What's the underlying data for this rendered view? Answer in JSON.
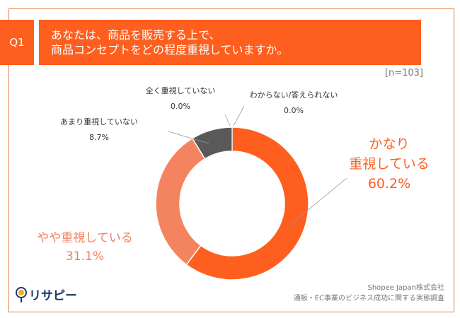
{
  "header": {
    "q_label": "Q1",
    "question_line1": "あなたは、商品を販売する上で、",
    "question_line2": "商品コンセプトをどの程度重視していますか。",
    "n": "[n=103]"
  },
  "chart_data": {
    "type": "pie",
    "donut": true,
    "categories": [
      "かなり重視している",
      "やや重視している",
      "あまり重視していない",
      "全く重視していない",
      "わからない/答えられない"
    ],
    "values": [
      60.2,
      31.1,
      8.7,
      0.0,
      0.0
    ],
    "value_labels": [
      "60.2%",
      "31.1%",
      "8.7%",
      "0.0%",
      "0.0%"
    ],
    "colors": [
      "#fe5f1e",
      "#f4845f",
      "#595959",
      "#bfbfbf",
      "#d9d9d9"
    ],
    "label_lines": [
      [
        "かなり",
        "重視している"
      ],
      [
        "やや重視している"
      ],
      [
        "あまり重視していない"
      ],
      [
        "全く重視していない"
      ],
      [
        "わからない/答えられない"
      ]
    ]
  },
  "footer": {
    "company": "Shopee Japan株式会社",
    "survey": "通販・EC事業のビジネス成功に関する実態調査",
    "logo_text": "リサピー"
  }
}
